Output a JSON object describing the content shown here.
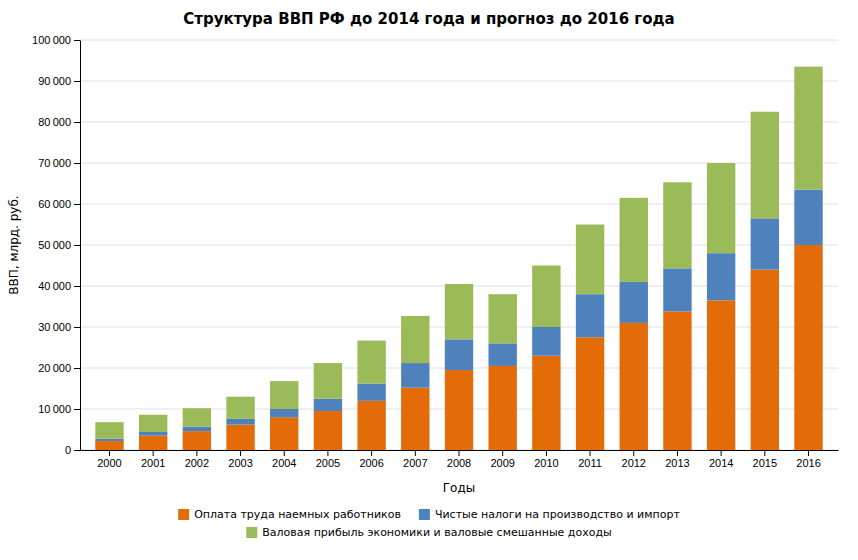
{
  "chart_data": {
    "type": "bar",
    "title": "Структура ВВП РФ до 2014 года и прогноз до 2016 года",
    "xlabel": "Годы",
    "ylabel": "ВВП, млрд. руб.",
    "categories": [
      "2000",
      "2001",
      "2002",
      "2003",
      "2004",
      "2005",
      "2006",
      "2007",
      "2008",
      "2009",
      "2010",
      "2011",
      "2012",
      "2013",
      "2014",
      "2015",
      "2016"
    ],
    "series": [
      {
        "name": "Оплата труда наемных работников",
        "color": "#E36C09",
        "values": [
          2200,
          3500,
          4600,
          6200,
          8000,
          9500,
          12000,
          15200,
          19500,
          20500,
          23000,
          27500,
          31000,
          33800,
          36500,
          44000,
          50000
        ]
      },
      {
        "name": "Чистые налоги на производство и импорт",
        "color": "#4F81BD",
        "values": [
          600,
          900,
          1100,
          1400,
          2000,
          3000,
          4200,
          6000,
          7500,
          5500,
          7000,
          10500,
          10000,
          10500,
          11500,
          12500,
          13500
        ]
      },
      {
        "name": "Валовая прибыль экономики и валовые смешанные доходы",
        "color": "#9BBB59",
        "values": [
          4000,
          4200,
          4500,
          5400,
          6800,
          8700,
          10500,
          11500,
          13500,
          12000,
          15000,
          17000,
          20500,
          21000,
          22000,
          26000,
          30000
        ]
      }
    ],
    "stacked": true,
    "ylim": [
      0,
      100000
    ],
    "yticks": [
      0,
      {
        "value": 10000,
        "label": "10 000"
      },
      {
        "value": 20000,
        "label": "20 000"
      },
      {
        "value": 30000,
        "label": "30 000"
      },
      {
        "value": 40000,
        "label": "40 000"
      },
      {
        "value": 50000,
        "label": "50 000"
      },
      {
        "value": 60000,
        "label": "60 000"
      },
      {
        "value": 70000,
        "label": "70 000"
      },
      {
        "value": 80000,
        "label": "80 000"
      },
      {
        "value": 90000,
        "label": "90 000"
      },
      {
        "value": 100000,
        "label": "100 000"
      }
    ],
    "grid": true,
    "legend": "bottom"
  }
}
